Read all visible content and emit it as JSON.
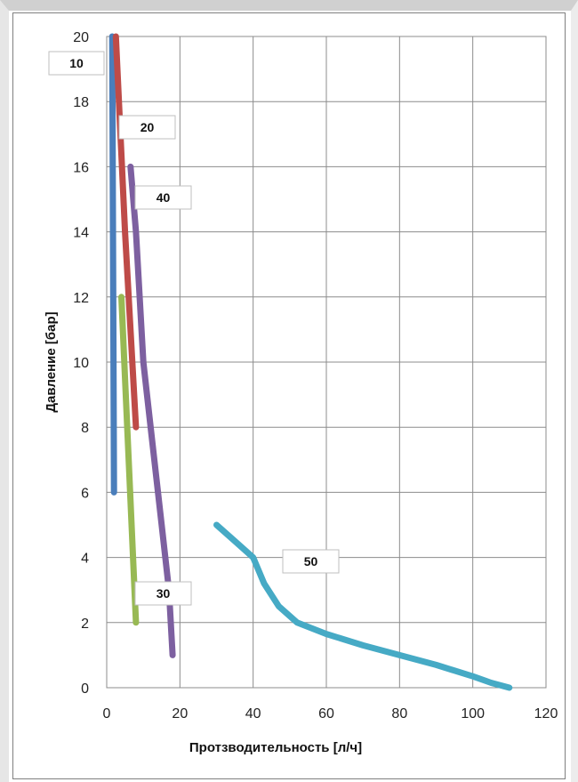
{
  "chart_data": {
    "type": "line",
    "xlabel": "Протзводительность [л/ч]",
    "ylabel": "Давление [бар]",
    "xlim": [
      0,
      120
    ],
    "ylim": [
      0,
      20
    ],
    "xticks": [
      0,
      20,
      40,
      60,
      80,
      100,
      120
    ],
    "yticks": [
      0,
      2,
      4,
      6,
      8,
      10,
      12,
      14,
      16,
      18,
      20
    ],
    "grid": true,
    "series": [
      {
        "name": "10",
        "color": "#4a7ebb",
        "x": [
          1.5,
          2.0
        ],
        "y": [
          20,
          6
        ]
      },
      {
        "name": "20",
        "color": "#be4b48",
        "x": [
          2.5,
          5.0,
          8.0
        ],
        "y": [
          20,
          14,
          8
        ]
      },
      {
        "name": "30",
        "color": "#98b954",
        "x": [
          4.0,
          6.0,
          8.0
        ],
        "y": [
          12,
          7,
          2
        ]
      },
      {
        "name": "40",
        "color": "#7d60a0",
        "x": [
          6.5,
          8.0,
          10.0,
          12.0,
          15.0,
          17.0,
          18.0
        ],
        "y": [
          16,
          14,
          10,
          8,
          5,
          3,
          1
        ]
      },
      {
        "name": "50",
        "color": "#46aac5",
        "x": [
          30,
          35,
          40,
          43,
          47,
          52,
          60,
          70,
          80,
          90,
          100,
          105,
          110
        ],
        "y": [
          5.0,
          4.5,
          4.0,
          3.2,
          2.5,
          2.0,
          1.65,
          1.3,
          1.0,
          0.7,
          0.35,
          0.15,
          0.0
        ]
      }
    ],
    "data_labels": [
      {
        "text": "10",
        "series": "10"
      },
      {
        "text": "20",
        "series": "20"
      },
      {
        "text": "40",
        "series": "40"
      },
      {
        "text": "30",
        "series": "30"
      },
      {
        "text": "50",
        "series": "50"
      }
    ]
  }
}
